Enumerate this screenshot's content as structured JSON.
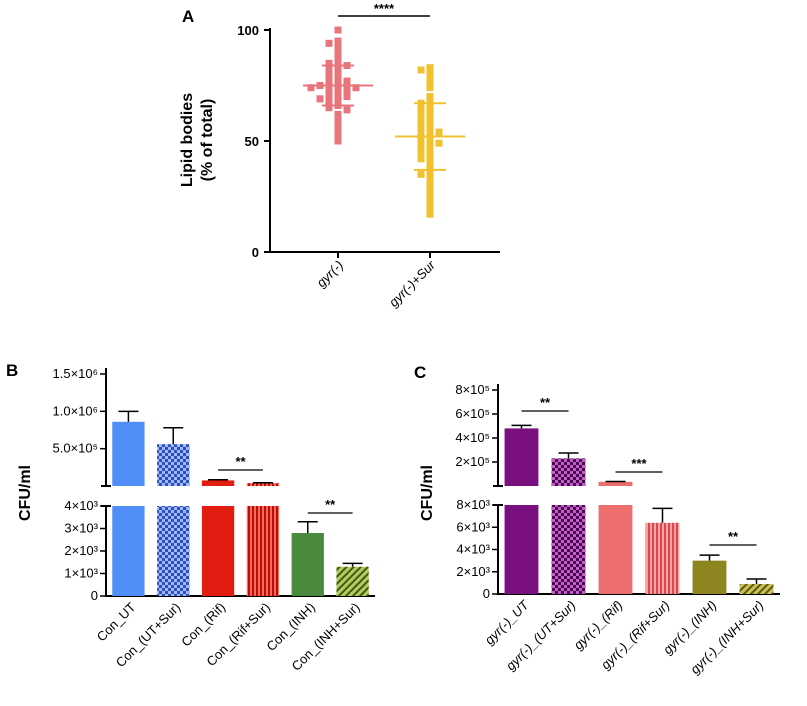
{
  "chart_data": [
    {
      "panel": "A",
      "type": "scatter",
      "ylabel_line1": "Lipid bodies",
      "ylabel_line2": "(% of total)",
      "ylim": [
        0,
        100
      ],
      "yticks": [
        "0",
        "50",
        "100"
      ],
      "groups": [
        {
          "name": "gyr(-)",
          "color": "#e8747c",
          "mean": 75,
          "sd": 9,
          "values": [
            100,
            95,
            94,
            92,
            90,
            88,
            86,
            85,
            84,
            83,
            82,
            80,
            79,
            78,
            78,
            77,
            76,
            75,
            75,
            75,
            74,
            74,
            73,
            72,
            72,
            71,
            70,
            70,
            69,
            68,
            67,
            66,
            65,
            64,
            62,
            60,
            58,
            55,
            53,
            50
          ]
        },
        {
          "name": "gyr(-)+Sur",
          "color": "#f2c12e",
          "mean": 52,
          "sd": 15,
          "values": [
            83,
            82,
            80,
            77,
            74,
            70,
            68,
            67,
            65,
            64,
            63,
            62,
            61,
            60,
            58,
            57,
            56,
            55,
            54,
            53,
            52,
            51,
            50,
            49,
            48,
            47,
            46,
            45,
            43,
            42,
            40,
            38,
            36,
            35,
            33,
            30,
            28,
            25,
            22,
            20,
            17
          ]
        }
      ],
      "significance": [
        {
          "from": 0,
          "to": 1,
          "label": "****"
        }
      ]
    },
    {
      "panel": "B",
      "type": "bar",
      "ylabel": "CFU/ml",
      "categories": [
        "Con_UT",
        "Con_(UT+Sur)",
        "Con_(Rif)",
        "Con_(Rif+Sur)",
        "Con_(INH)",
        "Con_(INH+Sur)"
      ],
      "values": [
        860000,
        560000,
        75000,
        38000,
        2800,
        1300
      ],
      "errors": [
        140000,
        220000,
        8000,
        6000,
        500,
        150
      ],
      "colors": [
        "#4f8ef7",
        "#3e64c9",
        "#e11d12",
        "#e11d12",
        "#4a8a3f",
        "#7c9a2e"
      ],
      "patterns": [
        "solid",
        "checker",
        "solid",
        "vstripe",
        "solid",
        "diag"
      ],
      "yticks_upper": [
        "5.0×10⁵",
        "1.0×10⁶",
        "1.5×10⁶"
      ],
      "yticks_lower": [
        "0",
        "1×10³",
        "2×10³",
        "3×10³",
        "4×10³"
      ],
      "significance": [
        {
          "from": 2,
          "to": 3,
          "label": "**"
        },
        {
          "from": 4,
          "to": 5,
          "label": "**"
        }
      ]
    },
    {
      "panel": "C",
      "type": "bar",
      "ylabel": "CFU/ml",
      "categories": [
        "gyr(-)_UT",
        "gyr(-)_(UT+Sur)",
        "gyr(-)_(Rif)",
        "gyr(-)_(Rif+Sur)",
        "gyr(-)_(INH)",
        "gyr(-)_(INH+Sur)"
      ],
      "values": [
        480000,
        230000,
        35000,
        6400,
        3000,
        900
      ],
      "errors": [
        25000,
        45000,
        3000,
        1300,
        500,
        450
      ],
      "colors": [
        "#7a1080",
        "#7a1080",
        "#ec6e6e",
        "#ec6e6e",
        "#8c8520",
        "#8c8520"
      ],
      "patterns": [
        "solid",
        "checker",
        "solid",
        "vstripe",
        "solid",
        "diag"
      ],
      "yticks_upper": [
        "2×10⁵",
        "4×10⁵",
        "6×10⁵",
        "8×10⁵"
      ],
      "yticks_lower": [
        "0",
        "2×10³",
        "4×10³",
        "6×10³",
        "8×10³"
      ],
      "significance": [
        {
          "from": 0,
          "to": 1,
          "label": "**"
        },
        {
          "from": 2,
          "to": 3,
          "label": "***"
        },
        {
          "from": 4,
          "to": 5,
          "label": "**"
        }
      ]
    }
  ]
}
